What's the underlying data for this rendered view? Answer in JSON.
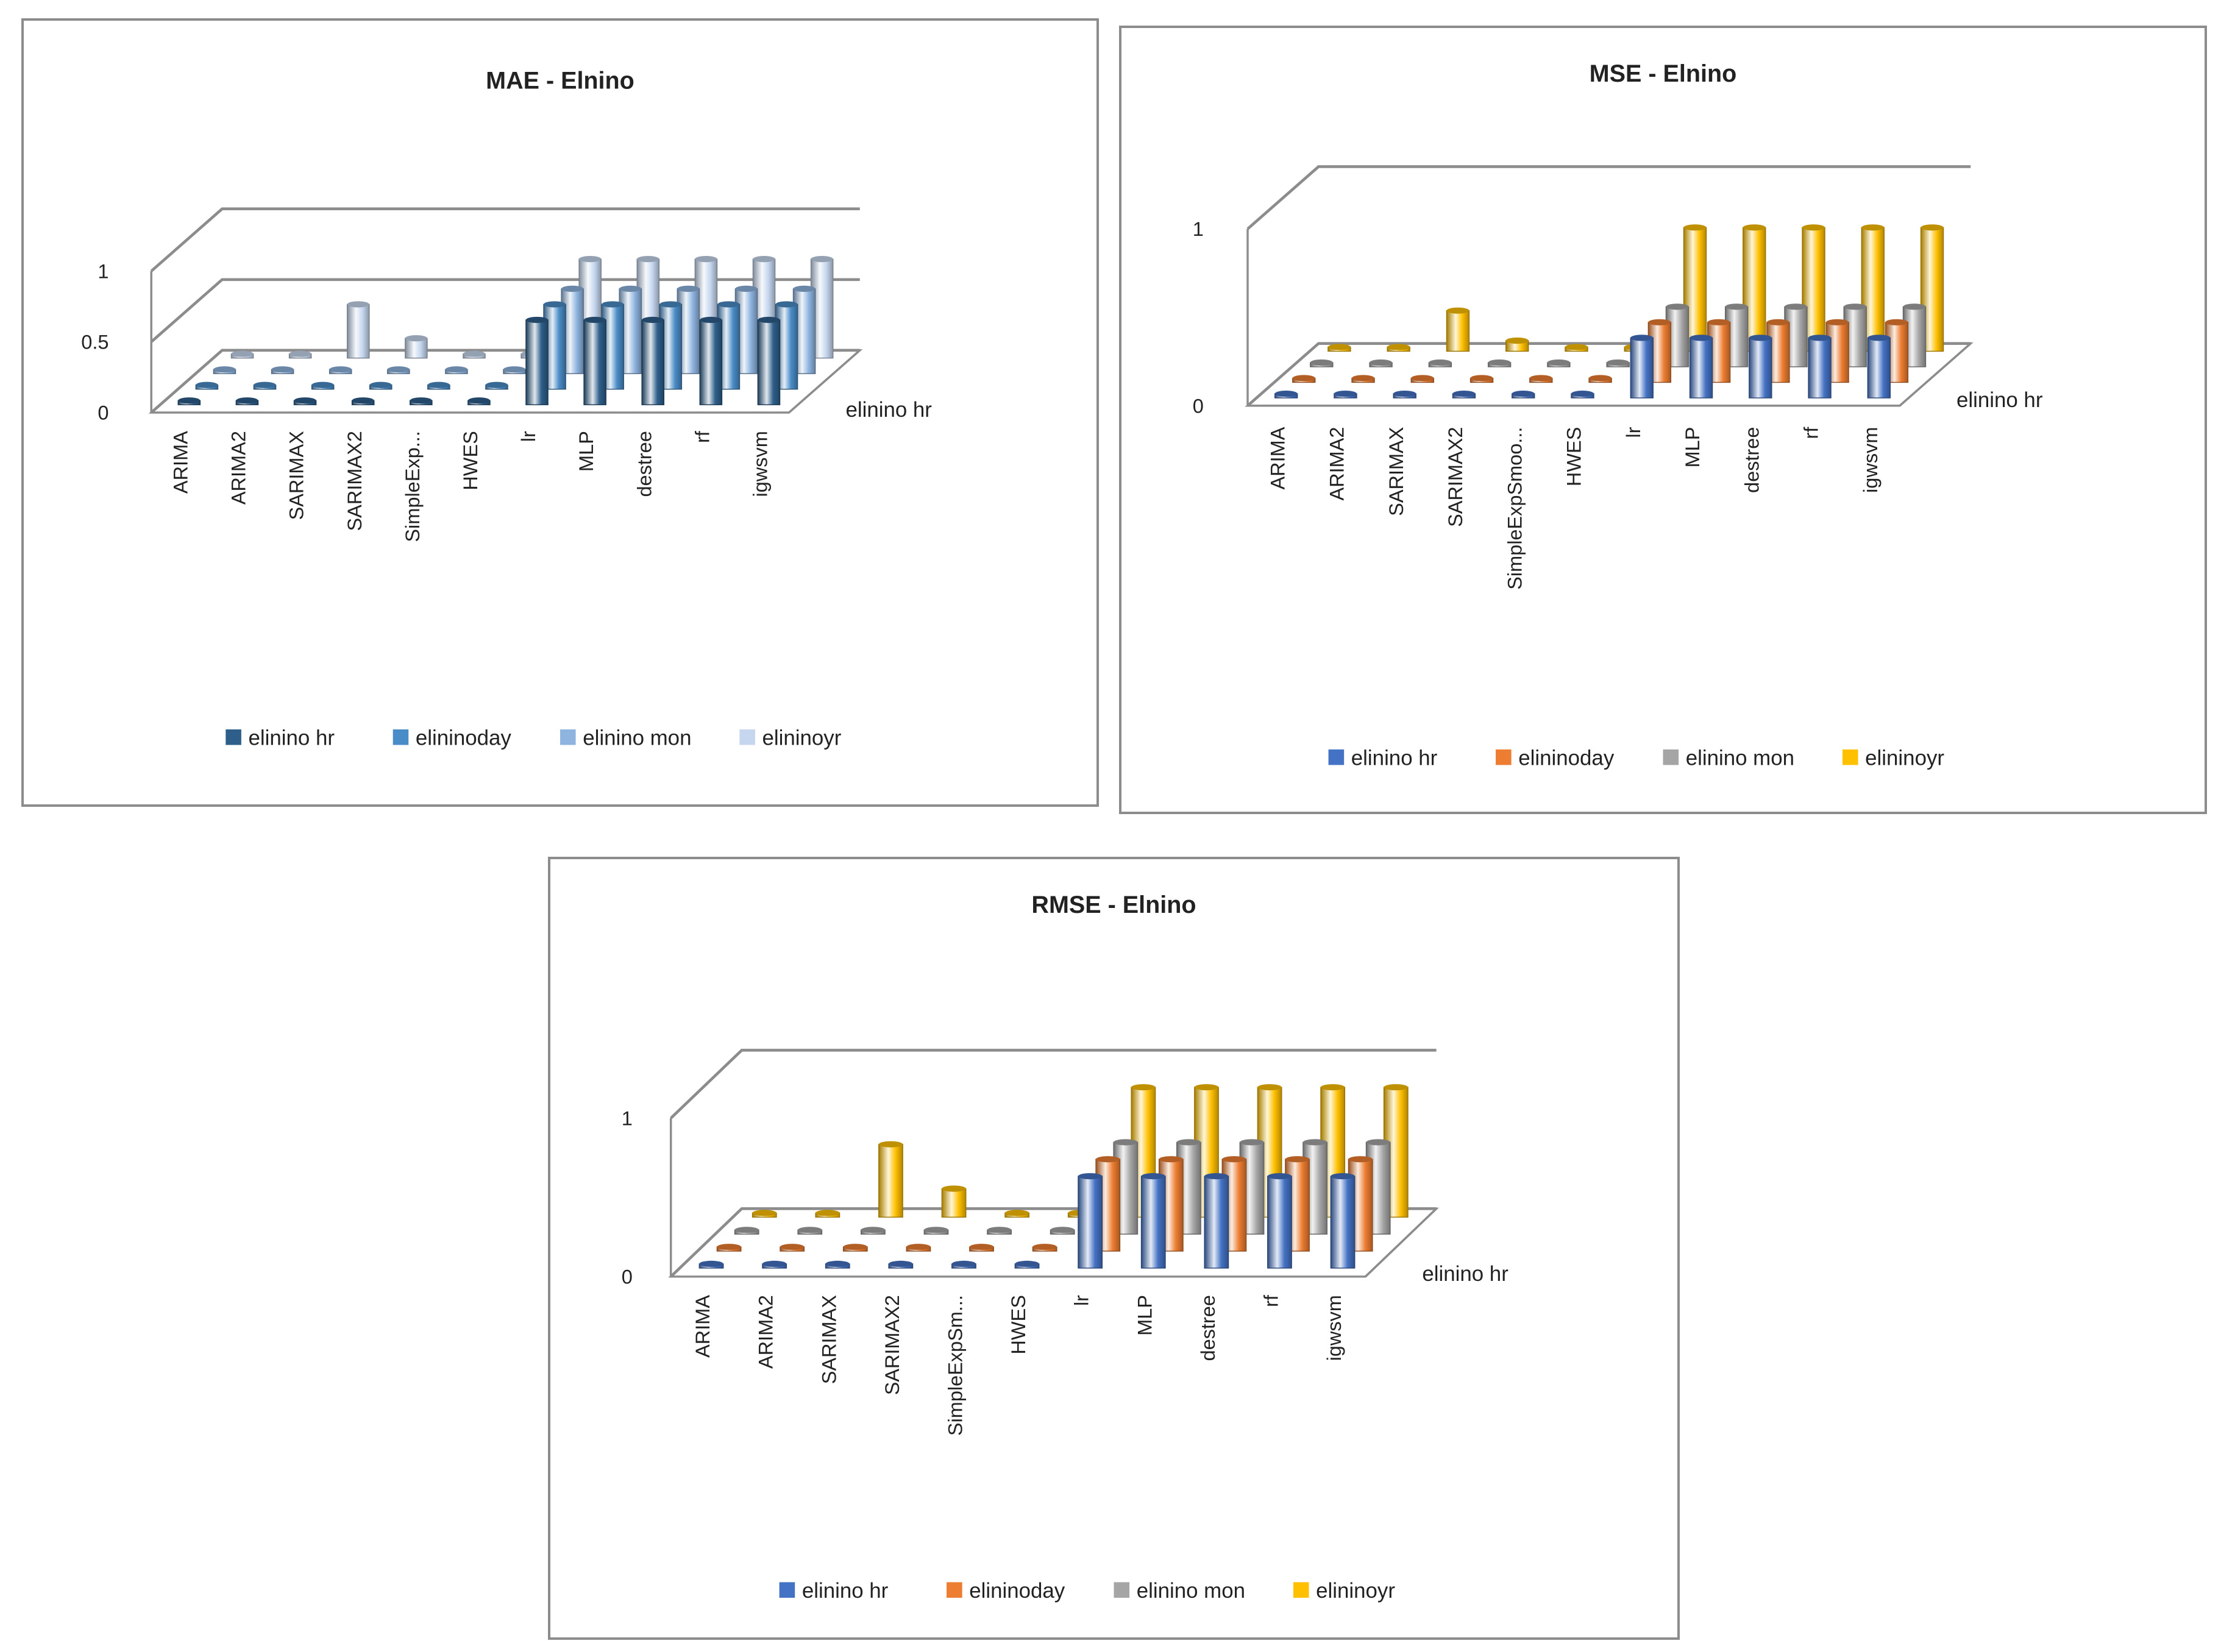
{
  "chart_data": [
    {
      "type": "bar",
      "title": "MAE - Elnino",
      "depth_label": "elinino hr",
      "yticks": [
        "0",
        "0.5",
        "1"
      ],
      "ytick_values": [
        0,
        0.5,
        1
      ],
      "ylim": [
        0,
        1
      ],
      "legend_position": "bottom",
      "categories": [
        "ARIMA",
        "ARIMA2",
        "SARIMAX",
        "SARIMAX2",
        "SimpleExp...",
        "HWES",
        "lr",
        "MLP",
        "destree",
        "rf",
        "igwsvm"
      ],
      "series": [
        {
          "name": "elinino hr",
          "color": "#2E5F8A",
          "values": [
            0.01,
            0.01,
            0.01,
            0.01,
            0.01,
            0.01,
            0.6,
            0.6,
            0.6,
            0.6,
            0.6
          ]
        },
        {
          "name": "elininoday",
          "color": "#4A8CC7",
          "values": [
            0.01,
            0.01,
            0.01,
            0.01,
            0.01,
            0.01,
            0.6,
            0.6,
            0.6,
            0.6,
            0.6
          ]
        },
        {
          "name": "elinino mon",
          "color": "#8FB4E0",
          "values": [
            0.01,
            0.01,
            0.01,
            0.01,
            0.01,
            0.01,
            0.6,
            0.6,
            0.6,
            0.6,
            0.6
          ]
        },
        {
          "name": "elininoyr",
          "color": "#C5D6EE",
          "values": [
            0.01,
            0.01,
            0.38,
            0.14,
            0.01,
            0.01,
            0.7,
            0.7,
            0.7,
            0.7,
            0.7
          ]
        }
      ]
    },
    {
      "type": "bar",
      "title": "MSE - Elnino",
      "depth_label": "elinino hr",
      "yticks": [
        "0",
        "1"
      ],
      "ytick_values": [
        0,
        1
      ],
      "ylim": [
        0,
        1
      ],
      "legend_position": "bottom",
      "categories": [
        "ARIMA",
        "ARIMA2",
        "SARIMAX",
        "SARIMAX2",
        "SimpleExpSmoo...",
        "HWES",
        "lr",
        "MLP",
        "destree",
        "rf",
        "igwsvm"
      ],
      "series": [
        {
          "name": "elinino hr",
          "color": "#4472C4",
          "values": [
            0.01,
            0.01,
            0.01,
            0.01,
            0.01,
            0.01,
            0.34,
            0.34,
            0.34,
            0.34,
            0.34
          ]
        },
        {
          "name": "elininoday",
          "color": "#ED7D31",
          "values": [
            0.01,
            0.01,
            0.01,
            0.01,
            0.01,
            0.01,
            0.34,
            0.34,
            0.34,
            0.34,
            0.34
          ]
        },
        {
          "name": "elinino mon",
          "color": "#A5A5A5",
          "values": [
            0.01,
            0.01,
            0.01,
            0.01,
            0.01,
            0.01,
            0.34,
            0.34,
            0.34,
            0.34,
            0.34
          ]
        },
        {
          "name": "elininoyr",
          "color": "#FFC000",
          "values": [
            0.01,
            0.01,
            0.23,
            0.06,
            0.01,
            0.01,
            0.7,
            0.7,
            0.7,
            0.7,
            0.7
          ]
        }
      ]
    },
    {
      "type": "bar",
      "title": "RMSE - Elnino",
      "depth_label": "elinino hr",
      "yticks": [
        "0",
        "1"
      ],
      "ytick_values": [
        0,
        1
      ],
      "ylim": [
        0,
        1
      ],
      "legend_position": "bottom",
      "categories": [
        "ARIMA",
        "ARIMA2",
        "SARIMAX",
        "SARIMAX2",
        "SimpleExpSm...",
        "HWES",
        "lr",
        "MLP",
        "destree",
        "rf",
        "igwsvm"
      ],
      "series": [
        {
          "name": "elinino hr",
          "color": "#4472C4",
          "values": [
            0.01,
            0.01,
            0.01,
            0.01,
            0.01,
            0.01,
            0.58,
            0.58,
            0.58,
            0.58,
            0.58
          ]
        },
        {
          "name": "elininoday",
          "color": "#ED7D31",
          "values": [
            0.01,
            0.01,
            0.01,
            0.01,
            0.01,
            0.01,
            0.58,
            0.58,
            0.58,
            0.58,
            0.58
          ]
        },
        {
          "name": "elinino mon",
          "color": "#A5A5A5",
          "values": [
            0.01,
            0.01,
            0.01,
            0.01,
            0.01,
            0.01,
            0.58,
            0.58,
            0.58,
            0.58,
            0.58
          ]
        },
        {
          "name": "elininoyr",
          "color": "#FFC000",
          "values": [
            0.01,
            0.01,
            0.46,
            0.18,
            0.01,
            0.01,
            0.82,
            0.82,
            0.82,
            0.82,
            0.82
          ]
        }
      ]
    }
  ]
}
